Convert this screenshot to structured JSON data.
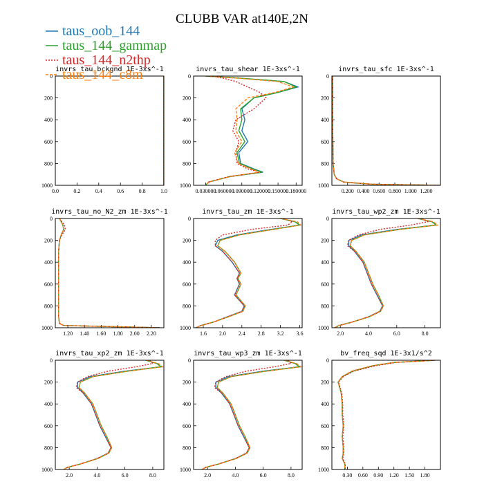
{
  "title": "CLUBB VAR at140E,2N",
  "legend": [
    {
      "name": "taus_oob_144",
      "color": "#1f77b4",
      "dash": ""
    },
    {
      "name": "taus_144_gammap",
      "color": "#2ca02c",
      "dash": ""
    },
    {
      "name": "taus_144_n2thp",
      "color": "#d62728",
      "dash": "2,2"
    },
    {
      "name": "taus_144_c8m",
      "color": "#ff7f0e",
      "dash": "4,2"
    }
  ],
  "chart_data": [
    {
      "type": "line",
      "title": "invrs_tau_bckgnd   1E-3xs^-1",
      "xlim": [
        0,
        1
      ],
      "ylim": [
        1000,
        0
      ],
      "xticks": [
        "0.0",
        "0.2",
        "0.4",
        "0.6",
        "0.8",
        "1.0"
      ],
      "yticks": [
        "0",
        "200",
        "400",
        "600",
        "800",
        "1000"
      ],
      "y": [
        0,
        1000
      ],
      "series": [
        {
          "values": [
            1,
            1
          ]
        },
        {
          "values": [
            1,
            1
          ]
        },
        {
          "values": [
            1,
            1
          ]
        },
        {
          "values": [
            1,
            1
          ]
        }
      ]
    },
    {
      "type": "line",
      "title": "invrs_tau_shear   1E-3xs^-1",
      "xlim": [
        0.01,
        0.19
      ],
      "ylim": [
        1000,
        0
      ],
      "xticks": [
        "0.030000",
        "0.060000",
        "0.090000",
        "0.120000",
        "0.150000",
        "0.180000"
      ],
      "yticks": [
        "0",
        "200",
        "400",
        "600",
        "800",
        "1000"
      ],
      "y": [
        0,
        20,
        50,
        100,
        150,
        200,
        300,
        400,
        500,
        600,
        700,
        800,
        850,
        880,
        920,
        970,
        1000
      ],
      "series": [
        {
          "values": [
            0.03,
            0.09,
            0.16,
            0.183,
            0.15,
            0.11,
            0.09,
            0.095,
            0.09,
            0.1,
            0.085,
            0.088,
            0.11,
            0.125,
            0.07,
            0.035,
            0.03
          ]
        },
        {
          "values": [
            0.03,
            0.09,
            0.16,
            0.18,
            0.15,
            0.11,
            0.088,
            0.09,
            0.085,
            0.095,
            0.082,
            0.086,
            0.108,
            0.123,
            0.07,
            0.035,
            0.03
          ]
        },
        {
          "values": [
            0.04,
            0.06,
            0.08,
            0.1,
            0.12,
            0.13,
            0.11,
            0.08,
            0.075,
            0.085,
            0.08,
            0.082,
            0.1,
            0.12,
            0.068,
            0.035,
            0.03
          ]
        },
        {
          "values": [
            0.03,
            0.085,
            0.15,
            0.175,
            0.145,
            0.1,
            0.08,
            0.082,
            0.08,
            0.09,
            0.078,
            0.084,
            0.105,
            0.12,
            0.07,
            0.035,
            0.03
          ]
        }
      ]
    },
    {
      "type": "line",
      "title": "invrs_tau_sfc   1E-3xs^-1",
      "xlim": [
        0,
        1.38
      ],
      "ylim": [
        1000,
        0
      ],
      "xticks": [
        "0.200",
        "0.400",
        "0.600",
        "0.800",
        "1.000",
        "1.200"
      ],
      "yticks": [
        "0",
        "200",
        "400",
        "600",
        "800",
        "1000"
      ],
      "y": [
        0,
        200,
        400,
        600,
        800,
        900,
        940,
        970,
        990,
        1000
      ],
      "series": [
        {
          "values": [
            0.01,
            0.01,
            0.01,
            0.012,
            0.015,
            0.03,
            0.06,
            0.15,
            0.5,
            1.4
          ]
        },
        {
          "values": [
            0.01,
            0.01,
            0.01,
            0.012,
            0.015,
            0.03,
            0.06,
            0.15,
            0.5,
            1.4
          ]
        },
        {
          "values": [
            0.01,
            0.01,
            0.01,
            0.012,
            0.015,
            0.03,
            0.06,
            0.15,
            0.5,
            1.4
          ]
        },
        {
          "values": [
            0.01,
            0.01,
            0.01,
            0.012,
            0.015,
            0.03,
            0.06,
            0.15,
            0.5,
            1.4
          ]
        }
      ]
    },
    {
      "type": "line",
      "title": "invrs_tau_no_N2_zm   1E-3xs^-1",
      "xlim": [
        1.05,
        2.35
      ],
      "ylim": [
        1000,
        0
      ],
      "xticks": [
        "1.20",
        "1.40",
        "1.60",
        "1.80",
        "2.00",
        "2.20"
      ],
      "yticks": [
        "0",
        "200",
        "400",
        "600",
        "800",
        "1000"
      ],
      "y": [
        0,
        30,
        60,
        100,
        150,
        200,
        300,
        500,
        700,
        900,
        960,
        980,
        1000
      ],
      "series": [
        {
          "values": [
            1.1,
            1.12,
            1.14,
            1.15,
            1.12,
            1.1,
            1.09,
            1.09,
            1.09,
            1.09,
            1.1,
            1.15,
            2.3
          ]
        },
        {
          "values": [
            1.1,
            1.12,
            1.14,
            1.15,
            1.12,
            1.1,
            1.09,
            1.09,
            1.09,
            1.09,
            1.1,
            1.15,
            2.3
          ]
        },
        {
          "values": [
            1.1,
            1.13,
            1.16,
            1.17,
            1.13,
            1.1,
            1.09,
            1.09,
            1.09,
            1.09,
            1.1,
            1.15,
            2.3
          ]
        },
        {
          "values": [
            1.1,
            1.12,
            1.14,
            1.15,
            1.12,
            1.1,
            1.09,
            1.09,
            1.09,
            1.09,
            1.1,
            1.15,
            2.3
          ]
        }
      ]
    },
    {
      "type": "line",
      "title": "invrs_tau_zm   1E-3xs^-1",
      "xlim": [
        1.4,
        3.65
      ],
      "ylim": [
        1000,
        0
      ],
      "xticks": [
        "1.6",
        "2.0",
        "2.4",
        "2.8",
        "3.2",
        "3.6"
      ],
      "yticks": [
        "0",
        "200",
        "400",
        "600",
        "800",
        "1000"
      ],
      "y": [
        0,
        30,
        60,
        100,
        150,
        200,
        250,
        300,
        400,
        500,
        550,
        600,
        700,
        800,
        850,
        900,
        950,
        980,
        1000
      ],
      "series": [
        {
          "values": [
            3.2,
            3.5,
            3.6,
            3.0,
            2.3,
            1.9,
            1.85,
            2.0,
            2.2,
            2.35,
            2.3,
            2.35,
            2.25,
            2.45,
            2.4,
            2.1,
            1.8,
            1.55,
            1.45
          ]
        },
        {
          "values": [
            3.2,
            3.5,
            3.6,
            3.05,
            2.35,
            1.95,
            1.9,
            2.05,
            2.25,
            2.38,
            2.32,
            2.38,
            2.28,
            2.47,
            2.42,
            2.12,
            1.8,
            1.55,
            1.45
          ]
        },
        {
          "values": [
            3.25,
            3.45,
            3.35,
            2.6,
            2.0,
            1.85,
            1.85,
            2.0,
            2.2,
            2.35,
            2.3,
            2.35,
            2.25,
            2.45,
            2.4,
            2.1,
            1.8,
            1.55,
            1.45
          ]
        },
        {
          "values": [
            3.2,
            3.55,
            3.62,
            3.05,
            2.35,
            1.95,
            1.9,
            2.05,
            2.25,
            2.38,
            2.32,
            2.38,
            2.28,
            2.47,
            2.42,
            2.12,
            1.8,
            1.55,
            1.45
          ]
        }
      ]
    },
    {
      "type": "line",
      "title": "invrs_tau_wp2_zm   1E-3xs^-1",
      "xlim": [
        1.4,
        9.1
      ],
      "ylim": [
        1000,
        0
      ],
      "xticks": [
        "2.0",
        "4.0",
        "6.0",
        "8.0"
      ],
      "yticks": [
        "0",
        "200",
        "400",
        "600",
        "800",
        "1000"
      ],
      "y": [
        0,
        30,
        60,
        100,
        150,
        200,
        250,
        300,
        400,
        500,
        600,
        700,
        800,
        850,
        900,
        950,
        980,
        1000
      ],
      "series": [
        {
          "values": [
            7.5,
            8.5,
            8.8,
            6.0,
            3.5,
            2.6,
            2.6,
            3.0,
            3.6,
            3.9,
            4.2,
            4.6,
            5.0,
            4.8,
            4.0,
            2.8,
            1.9,
            1.6
          ]
        },
        {
          "values": [
            7.5,
            8.5,
            8.8,
            6.2,
            3.7,
            2.8,
            2.7,
            3.1,
            3.7,
            4.0,
            4.3,
            4.7,
            5.05,
            4.85,
            4.05,
            2.8,
            1.9,
            1.6
          ]
        },
        {
          "values": [
            7.8,
            8.2,
            7.0,
            4.8,
            3.3,
            2.6,
            2.5,
            3.0,
            3.6,
            3.9,
            4.2,
            4.6,
            5.0,
            4.8,
            4.0,
            2.8,
            1.9,
            1.6
          ]
        },
        {
          "values": [
            7.5,
            8.6,
            8.9,
            6.2,
            3.7,
            2.8,
            2.7,
            3.1,
            3.7,
            4.0,
            4.3,
            4.7,
            5.05,
            4.85,
            4.05,
            2.8,
            1.9,
            1.6
          ]
        }
      ]
    },
    {
      "type": "line",
      "title": "invrs_tau_xp2_zm   1E-3xs^-1",
      "xlim": [
        1.0,
        8.8
      ],
      "ylim": [
        1000,
        0
      ],
      "xticks": [
        "2.0",
        "4.0",
        "6.0",
        "8.0"
      ],
      "yticks": [
        "0",
        "200",
        "400",
        "600",
        "800",
        "1000"
      ],
      "y": [
        0,
        30,
        60,
        100,
        150,
        200,
        250,
        300,
        400,
        500,
        600,
        700,
        800,
        850,
        900,
        950,
        980,
        1000
      ],
      "series": [
        {
          "values": [
            7.5,
            8.3,
            8.6,
            6.0,
            3.5,
            2.6,
            2.6,
            3.0,
            3.6,
            3.9,
            4.2,
            4.6,
            5.0,
            4.8,
            4.0,
            2.8,
            1.9,
            1.6
          ]
        },
        {
          "values": [
            7.5,
            8.3,
            8.6,
            6.2,
            3.7,
            2.8,
            2.7,
            3.1,
            3.7,
            4.0,
            4.3,
            4.7,
            5.05,
            4.85,
            4.05,
            2.8,
            1.9,
            1.6
          ]
        },
        {
          "values": [
            7.8,
            8.0,
            6.8,
            4.8,
            3.3,
            2.6,
            2.5,
            3.0,
            3.6,
            3.9,
            4.2,
            4.6,
            5.0,
            4.8,
            4.0,
            2.8,
            1.9,
            1.6
          ]
        },
        {
          "values": [
            7.5,
            8.4,
            8.7,
            6.2,
            3.7,
            2.8,
            2.7,
            3.1,
            3.7,
            4.0,
            4.3,
            4.7,
            5.05,
            4.85,
            4.05,
            2.8,
            1.9,
            1.6
          ]
        }
      ]
    },
    {
      "type": "line",
      "title": "invrs_tau_wp3_zm   1E-3xs^-1",
      "xlim": [
        1.0,
        8.8
      ],
      "ylim": [
        1000,
        0
      ],
      "xticks": [
        "2.0",
        "4.0",
        "6.0",
        "8.0"
      ],
      "yticks": [
        "0",
        "200",
        "400",
        "600",
        "800",
        "1000"
      ],
      "y": [
        0,
        30,
        60,
        100,
        150,
        200,
        250,
        300,
        400,
        500,
        600,
        700,
        800,
        850,
        900,
        950,
        980,
        1000
      ],
      "series": [
        {
          "values": [
            7.5,
            8.3,
            8.6,
            6.0,
            3.5,
            2.6,
            2.6,
            3.0,
            3.6,
            3.9,
            4.2,
            4.6,
            5.0,
            4.8,
            4.0,
            2.8,
            1.9,
            1.6
          ]
        },
        {
          "values": [
            7.5,
            8.3,
            8.6,
            6.2,
            3.7,
            2.8,
            2.7,
            3.1,
            3.7,
            4.0,
            4.3,
            4.7,
            5.05,
            4.85,
            4.05,
            2.8,
            1.9,
            1.6
          ]
        },
        {
          "values": [
            7.8,
            8.0,
            6.8,
            4.8,
            3.3,
            2.6,
            2.5,
            3.0,
            3.6,
            3.9,
            4.2,
            4.6,
            5.0,
            4.8,
            4.0,
            2.8,
            1.9,
            1.6
          ]
        },
        {
          "values": [
            7.5,
            8.4,
            8.7,
            6.2,
            3.7,
            2.8,
            2.7,
            3.1,
            3.7,
            4.0,
            4.3,
            4.7,
            5.05,
            4.85,
            4.05,
            2.8,
            1.9,
            1.6
          ]
        }
      ]
    },
    {
      "type": "line",
      "title": "bv_freq_sqd   1E-3x1/s^2",
      "xlim": [
        0.0,
        2.1
      ],
      "ylim": [
        1000,
        0
      ],
      "xticks": [
        "0.30",
        "0.60",
        "0.90",
        "1.20",
        "1.50",
        "1.80"
      ],
      "yticks": [
        "0",
        "200",
        "400",
        "600",
        "800",
        "1000"
      ],
      "y": [
        0,
        20,
        50,
        100,
        150,
        200,
        300,
        400,
        500,
        600,
        700,
        800,
        850,
        900,
        950,
        1000
      ],
      "series": [
        {
          "values": [
            2.0,
            1.2,
            0.8,
            0.4,
            0.2,
            0.12,
            0.18,
            0.2,
            0.2,
            0.22,
            0.2,
            0.22,
            0.22,
            0.2,
            0.25,
            0.25
          ]
        },
        {
          "values": [
            2.0,
            1.2,
            0.8,
            0.4,
            0.2,
            0.12,
            0.18,
            0.2,
            0.2,
            0.22,
            0.2,
            0.22,
            0.22,
            0.2,
            0.25,
            0.25
          ]
        },
        {
          "values": [
            2.0,
            1.25,
            0.85,
            0.42,
            0.22,
            0.13,
            0.19,
            0.21,
            0.21,
            0.23,
            0.21,
            0.23,
            0.23,
            0.21,
            0.26,
            0.26
          ]
        },
        {
          "values": [
            2.0,
            1.2,
            0.78,
            0.38,
            0.2,
            0.12,
            0.18,
            0.2,
            0.2,
            0.22,
            0.2,
            0.22,
            0.22,
            0.2,
            0.25,
            0.25
          ]
        }
      ]
    }
  ]
}
